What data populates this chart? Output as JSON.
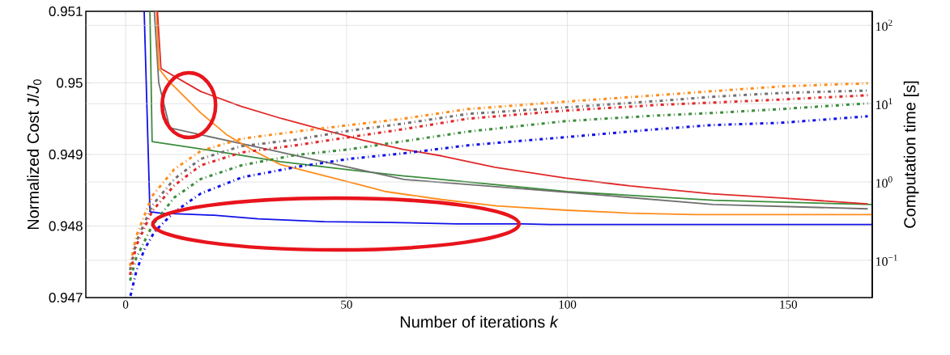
{
  "chart_data": {
    "type": "line",
    "xlabel": "Number of iterations *k*",
    "ylabel": "Normalized Cost *J*/*J*$_{0}$",
    "y2label": "Computation time [s]",
    "xlim": [
      -9,
      169
    ],
    "xticks": [
      0,
      50,
      100,
      150
    ],
    "ylim": [
      0.947,
      0.951
    ],
    "yticks": [
      0.947,
      0.948,
      0.949,
      0.95,
      0.951
    ],
    "y2lim": [
      0.0334,
      151
    ],
    "y2ticks": [
      {
        "value": 0.1,
        "label": "10$^{−1}$"
      },
      {
        "value": 1,
        "label": "10$^{0}$"
      },
      {
        "value": 10,
        "label": "10$^{1}$"
      },
      {
        "value": 100,
        "label": "10$^{2}$"
      }
    ],
    "log": "y2",
    "grid": true,
    "series": [
      {
        "color": "#1010e8",
        "line_style": "solid",
        "x": [
          4.2,
          5.5,
          8,
          20,
          30,
          45,
          60,
          75,
          90,
          96,
          169
        ],
        "values": [
          0.951,
          0.9482,
          0.94818,
          0.94815,
          0.9481,
          0.94806,
          0.94805,
          0.94803,
          0.94803,
          0.94802,
          0.94802
        ]
      },
      {
        "color": "#3c8c3c",
        "line_style": "solid",
        "x": [
          5.5,
          6,
          20,
          35,
          50,
          63,
          80,
          100,
          133,
          169
        ],
        "values": [
          0.951,
          0.94918,
          0.94905,
          0.9489,
          0.94879,
          0.9487,
          0.9486,
          0.94848,
          0.94836,
          0.9483
        ]
      },
      {
        "color": "#707070",
        "line_style": "solid",
        "x": [
          6.5,
          7.5,
          10,
          30,
          63,
          100,
          133,
          168
        ],
        "values": [
          0.951,
          0.95,
          0.94937,
          0.9491,
          0.94865,
          0.94847,
          0.9483,
          0.94824
        ]
      },
      {
        "color": "#ff8c1a",
        "line_style": "solid",
        "x": [
          7,
          7.5,
          9.7,
          17,
          23,
          29,
          35,
          44.5,
          54,
          59,
          71.5,
          84,
          100,
          114,
          129,
          169
        ],
        "values": [
          0.951,
          0.9502,
          0.95003,
          0.94958,
          0.94927,
          0.94905,
          0.94886,
          0.94871,
          0.94856,
          0.94848,
          0.94837,
          0.94828,
          0.94822,
          0.94818,
          0.94816,
          0.94816
        ]
      },
      {
        "color": "#e02828",
        "line_style": "solid",
        "x": [
          7.2,
          8,
          17,
          26.2,
          35.4,
          44.5,
          53.7,
          62.9,
          71.5,
          83.6,
          99.5,
          114.2,
          132.5,
          148.5,
          168
        ],
        "values": [
          0.951,
          0.9502,
          0.94988,
          0.94967,
          0.9495,
          0.94935,
          0.9492,
          0.94907,
          0.94898,
          0.94882,
          0.94867,
          0.94856,
          0.94845,
          0.94839,
          0.94831
        ]
      },
      {
        "color": "#ff8c1a",
        "line_style": "dotted",
        "axis": "y2",
        "x": [
          1,
          2.4,
          6,
          11,
          17,
          26.2,
          38.5,
          50.6,
          62.9,
          77.5,
          99.5,
          120.3,
          132.5,
          148.5,
          168
        ],
        "values": [
          0.085,
          0.203,
          0.662,
          1.45,
          2.49,
          3.56,
          4.4,
          5.32,
          6.43,
          8.53,
          10.6,
          12.8,
          14.4,
          16.6,
          18.2
        ]
      },
      {
        "color": "#707070",
        "line_style": "dotted",
        "axis": "y2",
        "x": [
          1,
          2.4,
          6,
          11,
          17,
          26.2,
          38.5,
          50.6,
          62.9,
          77.5,
          99.5,
          120.3,
          132.5,
          148.5,
          168
        ],
        "values": [
          0.075,
          0.172,
          0.499,
          1.09,
          1.97,
          2.87,
          3.47,
          4.51,
          5.57,
          7.4,
          8.95,
          10.8,
          12.2,
          13.7,
          14.7
        ]
      },
      {
        "color": "#e02828",
        "line_style": "dotted",
        "axis": "y2",
        "x": [
          1,
          2.4,
          6,
          11,
          17,
          26.2,
          38.5,
          50.6,
          62.9,
          77.5,
          99.5,
          120.3,
          132.5,
          148.5,
          168
        ],
        "values": [
          0.065,
          0.153,
          0.423,
          0.902,
          1.63,
          2.38,
          2.94,
          3.73,
          4.72,
          6.43,
          8.15,
          9.62,
          10.3,
          11.3,
          12.8
        ]
      },
      {
        "color": "#3c8c3c",
        "line_style": "dotted",
        "axis": "y2",
        "x": [
          1,
          2.4,
          6,
          11,
          17,
          26.2,
          38.5,
          50.6,
          62.9,
          77.5,
          99.5,
          120.3,
          132.5,
          148.5,
          168
        ],
        "values": [
          0.055,
          0.107,
          0.276,
          0.632,
          1.09,
          1.63,
          2.21,
          2.61,
          3.31,
          4.4,
          5.98,
          7.06,
          7.59,
          8.53,
          10.1
        ]
      },
      {
        "color": "#1010e8",
        "line_style": "dotted",
        "axis": "y2",
        "x": [
          1.1,
          2.4,
          4.2,
          6.6,
          11,
          17,
          26.2,
          38.5,
          50.6,
          62.9,
          77.5,
          99.5,
          120.3,
          132.5,
          148.5,
          168
        ],
        "values": [
          0.0352,
          0.0716,
          0.136,
          0.234,
          0.413,
          0.711,
          1.14,
          1.55,
          1.97,
          2.32,
          2.94,
          3.73,
          4.72,
          5.32,
          5.7,
          6.9
        ]
      }
    ]
  }
}
